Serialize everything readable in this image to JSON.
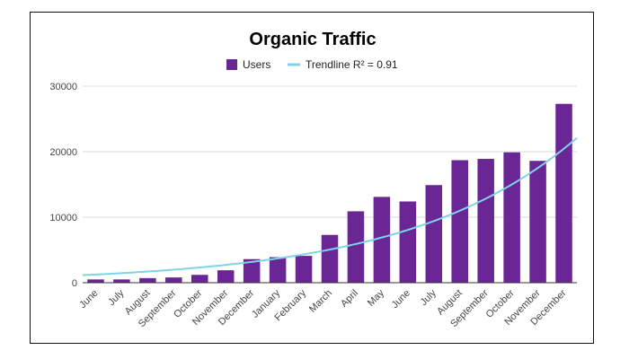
{
  "chart_data": {
    "type": "bar",
    "title": "Organic Traffic",
    "xlabel": "",
    "ylabel": "",
    "categories": [
      "June",
      "July",
      "August",
      "September",
      "October",
      "November",
      "December",
      "January",
      "February",
      "March",
      "April",
      "May",
      "June",
      "July",
      "August",
      "September",
      "October",
      "November",
      "December"
    ],
    "series": [
      {
        "name": "Users",
        "color": "#6b2695",
        "values": [
          500,
          500,
          700,
          800,
          1200,
          1900,
          3600,
          3900,
          4100,
          7300,
          10900,
          13100,
          12400,
          14900,
          18700,
          18900,
          19900,
          18600,
          27300
        ]
      }
    ],
    "trendline": {
      "label": "Trendline R² = 0.91",
      "color": "#7fd3e8",
      "type": "exponential",
      "values": [
        1250,
        1460,
        1710,
        2000,
        2340,
        2740,
        3200,
        3740,
        4380,
        5120,
        5990,
        7000,
        8190,
        9580,
        11200,
        13100,
        15330,
        17930,
        20960
      ]
    },
    "ylim": [
      0,
      30000
    ],
    "yticks": [
      0,
      10000,
      20000,
      30000
    ],
    "grid": true,
    "legend_position": "top"
  }
}
